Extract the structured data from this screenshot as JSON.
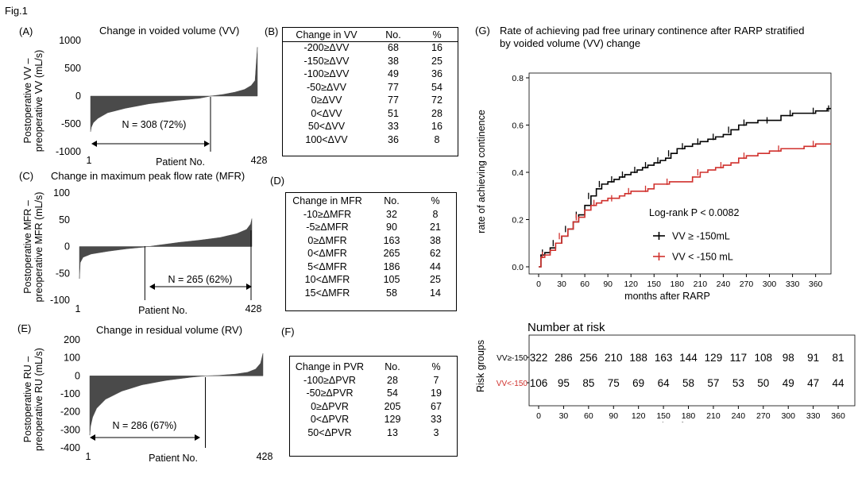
{
  "figure_label": "Fig.1",
  "panels": {
    "A": {
      "letter": "(A)",
      "title": "Change in voided volume (VV)",
      "ylabel_line1": "Postoperative VV –",
      "ylabel_line2": "preoperative VV (mL/s)",
      "yticks": [
        "1000",
        "500",
        "0",
        "-500",
        "-1000"
      ],
      "x_start": "1",
      "x_end": "428",
      "xlabel": "Patient No.",
      "annotation": "N = 308 (72%)"
    },
    "B": {
      "letter": "(B)",
      "headers": [
        "Change in VV",
        "No.",
        "%"
      ],
      "rows": [
        [
          "-200≥ΔVV",
          "68",
          "16"
        ],
        [
          "-150≥ΔVV",
          "38",
          "25"
        ],
        [
          "-100≥ΔVV",
          "49",
          "36"
        ],
        [
          "-50≥ΔVV",
          "77",
          "54"
        ],
        [
          "0≥ΔVV",
          "77",
          "72"
        ],
        [
          "0<ΔVV",
          "51",
          "28"
        ],
        [
          "50<ΔVV",
          "33",
          "16"
        ],
        [
          "100<ΔVV",
          "36",
          "8"
        ]
      ]
    },
    "C": {
      "letter": "(C)",
      "title": "Change in maximum peak flow rate (MFR)",
      "ylabel_line1": "Postoperative MFR –",
      "ylabel_line2": "preoperative MFR (mL/s)",
      "yticks": [
        "100",
        "50",
        "0",
        "-50",
        "-100"
      ],
      "x_start": "1",
      "x_end": "428",
      "xlabel": "Patient No.",
      "annotation": "N = 265 (62%)"
    },
    "D": {
      "letter": "(D)",
      "headers": [
        "Change in MFR",
        "No.",
        "%"
      ],
      "rows": [
        [
          "-10≥ΔMFR",
          "32",
          "8"
        ],
        [
          "-5≥ΔMFR",
          "90",
          "21"
        ],
        [
          "0≥ΔMFR",
          "163",
          "38"
        ],
        [
          "0<ΔMFR",
          "265",
          "62"
        ],
        [
          "5<ΔMFR",
          "186",
          "44"
        ],
        [
          "10<ΔMFR",
          "105",
          "25"
        ],
        [
          "15<ΔMFR",
          "58",
          "14"
        ]
      ]
    },
    "E": {
      "letter": "(E)",
      "title": "Change in residual volume (RV)",
      "ylabel_line1": "Postoperative RU –",
      "ylabel_line2": "preoperative RU (mL/s)",
      "yticks": [
        "200",
        "100",
        "0",
        "-100",
        "-200",
        "-300",
        "-400"
      ],
      "x_start": "1",
      "x_end": "428",
      "xlabel": "Patient No.",
      "annotation": "N = 286 (67%)"
    },
    "F": {
      "letter": "(F)",
      "headers": [
        "Change in PVR",
        "No.",
        "%"
      ],
      "rows": [
        [
          "-100≥ΔPVR",
          "28",
          "7"
        ],
        [
          "-50≥ΔPVR",
          "54",
          "19"
        ],
        [
          "0≥ΔPVR",
          "205",
          "67"
        ],
        [
          "0<ΔPVR",
          "129",
          "33"
        ],
        [
          "50<ΔPVR",
          "13",
          "3"
        ]
      ]
    },
    "G": {
      "letter": "(G)",
      "title_line1": "Rate of achieving pad free urinary continence after RARP stratified",
      "title_line2": "by voided volume (VV) change",
      "ylabel": "rate of achieving continence",
      "xlabel": "months after RARP",
      "logrank": "Log-rank P < 0.0082",
      "legend": [
        {
          "label": "VV ≥ -150mL",
          "color": "#000000"
        },
        {
          "label": "VV < -150 mL",
          "color": "#d0312d"
        }
      ],
      "risk_title": "Number at risk",
      "risk_ylabel": "Risk groups",
      "risk_groups": [
        {
          "label": "VV≥-150",
          "color": "#000000",
          "counts": [
            "322",
            "286",
            "256",
            "210",
            "188",
            "163",
            "144",
            "129",
            "117",
            "108",
            "98",
            "91",
            "81",
            ""
          ]
        },
        {
          "label": "VV<-150",
          "color": "#d0312d",
          "counts": [
            "106",
            "95",
            "85",
            "75",
            "69",
            "64",
            "58",
            "57",
            "53",
            "50",
            "49",
            "47",
            "44",
            ""
          ]
        }
      ],
      "risk_xlabel": "months after RARP"
    }
  },
  "chart_data": [
    {
      "panel": "A",
      "type": "bar",
      "title": "Change in voided volume (VV)",
      "n_patients": 428,
      "ylim": [
        -1000,
        1000
      ],
      "ytick_values": [
        1000,
        500,
        0,
        -500,
        -1000
      ],
      "sorted_profile": [
        [
          1,
          -640
        ],
        [
          3,
          -560
        ],
        [
          8,
          -480
        ],
        [
          20,
          -400
        ],
        [
          45,
          -300
        ],
        [
          90,
          -220
        ],
        [
          150,
          -140
        ],
        [
          220,
          -80
        ],
        [
          280,
          -40
        ],
        [
          308,
          0
        ],
        [
          340,
          30
        ],
        [
          370,
          70
        ],
        [
          395,
          120
        ],
        [
          412,
          190
        ],
        [
          422,
          280
        ],
        [
          428,
          880
        ]
      ],
      "cutoff_patient": 308
    },
    {
      "panel": "C",
      "type": "bar",
      "title": "Change in maximum peak flow rate (MFR)",
      "n_patients": 428,
      "ylim": [
        -100,
        100
      ],
      "ytick_values": [
        100,
        50,
        0,
        -50,
        -100
      ],
      "sorted_profile": [
        [
          1,
          -60
        ],
        [
          3,
          -30
        ],
        [
          10,
          -20
        ],
        [
          30,
          -14
        ],
        [
          70,
          -9
        ],
        [
          120,
          -4
        ],
        [
          163,
          -1
        ],
        [
          200,
          3
        ],
        [
          250,
          8
        ],
        [
          300,
          12
        ],
        [
          350,
          17
        ],
        [
          390,
          24
        ],
        [
          415,
          32
        ],
        [
          425,
          42
        ],
        [
          428,
          52
        ]
      ],
      "cutoff_patient": 163,
      "annotation_range": [
        163,
        428
      ]
    },
    {
      "panel": "E",
      "type": "bar",
      "title": "Change in residual volume (RV)",
      "n_patients": 428,
      "ylim": [
        -400,
        200
      ],
      "ytick_values": [
        200,
        100,
        0,
        -100,
        -200,
        -300,
        -400
      ],
      "sorted_profile": [
        [
          1,
          -330
        ],
        [
          3,
          -280
        ],
        [
          8,
          -230
        ],
        [
          18,
          -180
        ],
        [
          40,
          -130
        ],
        [
          80,
          -85
        ],
        [
          130,
          -50
        ],
        [
          190,
          -25
        ],
        [
          250,
          -8
        ],
        [
          286,
          0
        ],
        [
          320,
          3
        ],
        [
          360,
          10
        ],
        [
          390,
          20
        ],
        [
          410,
          38
        ],
        [
          422,
          70
        ],
        [
          428,
          125
        ]
      ],
      "cutoff_patient": 286
    },
    {
      "panel": "G",
      "type": "line",
      "title": "Rate of achieving pad free urinary continence after RARP stratified by voided volume (VV) change",
      "xlabel": "months after RARP",
      "ylabel": "rate of achieving continence",
      "xlim": [
        0,
        380
      ],
      "ylim": [
        0,
        0.8
      ],
      "x_ticks": [
        0,
        30,
        60,
        90,
        120,
        150,
        180,
        210,
        240,
        270,
        300,
        330,
        360
      ],
      "y_ticks": [
        0.0,
        0.2,
        0.4,
        0.6,
        0.8
      ],
      "series": [
        {
          "name": "VV ≥ -150mL",
          "color": "#000000",
          "x": [
            0,
            3,
            8,
            15,
            22,
            30,
            38,
            45,
            52,
            60,
            68,
            75,
            82,
            90,
            98,
            105,
            112,
            120,
            128,
            135,
            142,
            150,
            158,
            165,
            172,
            180,
            190,
            200,
            210,
            220,
            230,
            240,
            250,
            260,
            270,
            285,
            300,
            315,
            330,
            345,
            360,
            375,
            380
          ],
          "y": [
            0.0,
            0.05,
            0.06,
            0.08,
            0.1,
            0.13,
            0.16,
            0.19,
            0.22,
            0.26,
            0.3,
            0.33,
            0.35,
            0.36,
            0.37,
            0.38,
            0.39,
            0.4,
            0.41,
            0.42,
            0.43,
            0.44,
            0.45,
            0.46,
            0.48,
            0.5,
            0.51,
            0.52,
            0.53,
            0.54,
            0.55,
            0.56,
            0.58,
            0.6,
            0.61,
            0.62,
            0.62,
            0.64,
            0.65,
            0.65,
            0.66,
            0.67,
            0.67
          ]
        },
        {
          "name": "VV < -150 mL",
          "color": "#d0312d",
          "x": [
            0,
            3,
            8,
            15,
            22,
            30,
            38,
            45,
            52,
            60,
            68,
            75,
            82,
            90,
            98,
            105,
            112,
            120,
            128,
            135,
            142,
            150,
            160,
            170,
            180,
            200,
            210,
            220,
            230,
            240,
            250,
            260,
            270,
            285,
            300,
            315,
            330,
            345,
            360,
            375,
            380
          ],
          "y": [
            0.0,
            0.04,
            0.05,
            0.07,
            0.1,
            0.13,
            0.16,
            0.19,
            0.21,
            0.24,
            0.26,
            0.27,
            0.28,
            0.29,
            0.29,
            0.3,
            0.31,
            0.32,
            0.32,
            0.32,
            0.33,
            0.35,
            0.35,
            0.36,
            0.36,
            0.38,
            0.4,
            0.41,
            0.42,
            0.43,
            0.44,
            0.46,
            0.47,
            0.48,
            0.49,
            0.5,
            0.5,
            0.51,
            0.52,
            0.52,
            0.52
          ]
        }
      ],
      "annotation": "Log-rank P < 0.0082",
      "legend_position": "center-right"
    },
    {
      "panel": "G-risk",
      "type": "table",
      "title": "Number at risk",
      "x_ticks": [
        0,
        30,
        60,
        90,
        120,
        150,
        180,
        210,
        240,
        270,
        300,
        330,
        360
      ],
      "rows": [
        {
          "name": "VV≥-150",
          "values": [
            322,
            286,
            256,
            210,
            188,
            163,
            144,
            129,
            117,
            108,
            98,
            91,
            81
          ]
        },
        {
          "name": "VV<-150",
          "values": [
            106,
            95,
            85,
            75,
            69,
            64,
            58,
            57,
            53,
            50,
            49,
            47,
            44
          ]
        }
      ]
    }
  ]
}
